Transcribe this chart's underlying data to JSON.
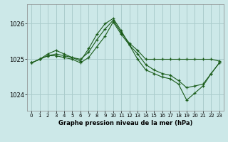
{
  "xlabel": "Graphe pression niveau de la mer (hPa)",
  "bg_color": "#cce8e8",
  "grid_color": "#aacccc",
  "line_color": "#1a5c1a",
  "marker": "+",
  "xlim": [
    -0.5,
    23.5
  ],
  "ylim": [
    1023.55,
    1026.55
  ],
  "yticks": [
    1024,
    1025,
    1026
  ],
  "xticks": [
    0,
    1,
    2,
    3,
    4,
    5,
    6,
    7,
    8,
    9,
    10,
    11,
    12,
    13,
    14,
    15,
    16,
    17,
    18,
    19,
    20,
    21,
    22,
    23
  ],
  "series": [
    {
      "x": [
        0,
        1,
        2,
        3,
        4,
        5,
        6,
        7,
        8,
        9,
        10,
        11,
        12,
        13,
        14,
        15,
        16,
        17,
        18,
        19,
        20,
        21,
        22,
        23
      ],
      "y": [
        1024.9,
        1025.0,
        1025.1,
        1025.15,
        1025.1,
        1025.05,
        1025.0,
        1025.2,
        1025.55,
        1025.85,
        1026.1,
        1025.75,
        1025.45,
        1025.25,
        1025.0,
        1025.0,
        1025.0,
        1025.0,
        1025.0,
        1025.0,
        1025.0,
        1025.0,
        1025.0,
        1024.95
      ]
    },
    {
      "x": [
        0,
        1,
        2,
        3,
        4,
        5,
        6,
        7,
        8,
        9,
        10,
        11,
        12,
        13,
        14,
        15,
        16,
        17,
        18,
        19,
        20,
        21,
        22,
        23
      ],
      "y": [
        1024.9,
        1025.0,
        1025.15,
        1025.25,
        1025.15,
        1025.05,
        1024.95,
        1025.3,
        1025.7,
        1026.0,
        1026.15,
        1025.8,
        1025.4,
        1025.0,
        1024.7,
        1024.6,
        1024.5,
        1024.45,
        1024.3,
        1023.85,
        1024.05,
        1024.25,
        1024.6,
        1024.9
      ]
    },
    {
      "x": [
        0,
        1,
        2,
        3,
        4,
        5,
        6,
        7,
        8,
        9,
        10,
        11,
        12,
        13,
        14,
        15,
        16,
        17,
        18,
        19,
        20,
        21,
        22,
        23
      ],
      "y": [
        1024.9,
        1025.0,
        1025.1,
        1025.1,
        1025.05,
        1025.0,
        1024.9,
        1025.05,
        1025.35,
        1025.65,
        1026.05,
        1025.7,
        1025.4,
        1025.15,
        1024.85,
        1024.7,
        1024.6,
        1024.55,
        1024.4,
        1024.2,
        1024.25,
        1024.3,
        1024.6,
        1024.9
      ]
    }
  ]
}
